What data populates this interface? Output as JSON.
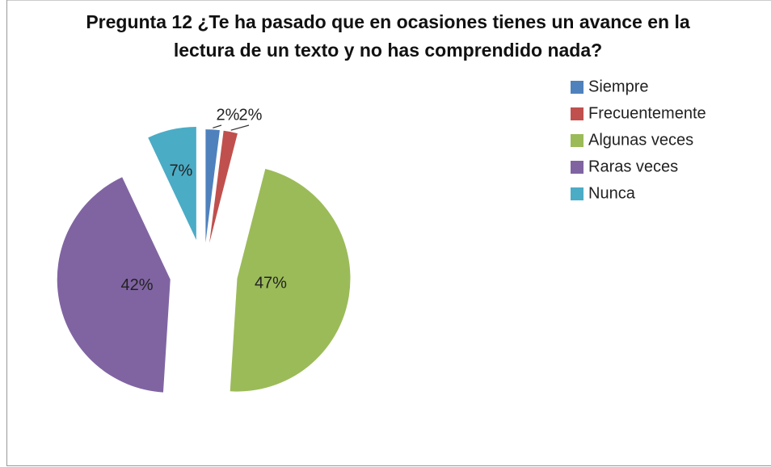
{
  "chart_data": {
    "type": "pie",
    "title": "Pregunta 12 ¿Te ha pasado que en ocasiones tienes un avance en la lectura de un texto y no has comprendido nada?",
    "categories": [
      "Siempre",
      "Frecuentemente",
      "Algunas veces",
      "Raras veces",
      "Nunca"
    ],
    "values": [
      2,
      2,
      47,
      42,
      7
    ],
    "value_labels": [
      "2%",
      "2%",
      "47%",
      "42%",
      "7%"
    ],
    "colors": [
      "#4f81bd",
      "#c0504d",
      "#9bbb59",
      "#8064a2",
      "#4bacc6"
    ],
    "legend": "right"
  }
}
